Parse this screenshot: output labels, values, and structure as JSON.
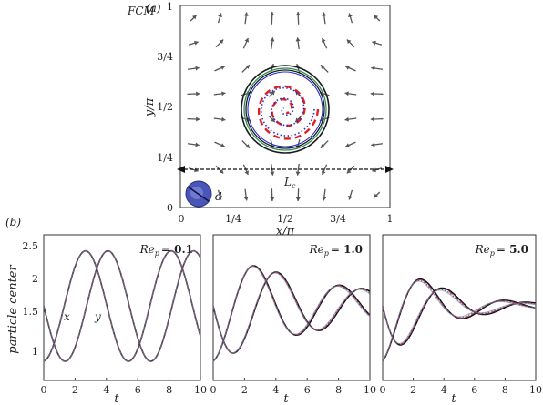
{
  "top_panel": {
    "tag": "(a)",
    "method_label": "FCM",
    "x_axis_label": "x/π",
    "y_axis_label": "y/π",
    "x_ticks": [
      "0",
      "1/4",
      "1/2",
      "3/4",
      "1"
    ],
    "y_ticks": [
      "0",
      "1/4",
      "1/2",
      "3/4",
      "1"
    ],
    "length_label": "L",
    "length_subscript": "c",
    "diameter_label": "d",
    "colors": {
      "arrows": "#555555",
      "trajectory_outer": "#1a1a1a",
      "trajectory_mid": "#2e8b57",
      "spiral_dashed": "#e02020",
      "spiral_dotted": "#2a2ad0",
      "particle": "#4a55b8"
    }
  },
  "bottom_panel": {
    "tag": "(b)",
    "y_axis_label": "particle center",
    "x_axis_label": "t",
    "y_ticks": [
      "1",
      "1.5",
      "2",
      "2.5"
    ],
    "x_ticks": [
      "0",
      "2",
      "4",
      "6",
      "8",
      "10"
    ],
    "curve_labels": {
      "x": "x",
      "y": "y"
    }
  },
  "chart_data": [
    {
      "type": "line",
      "title_prefix": "Re",
      "title_subscript": "p",
      "title_value": "= 0.1",
      "xlim": [
        0,
        10
      ],
      "ylim": [
        0.6,
        2.5
      ],
      "damping": 0.0,
      "series": [
        {
          "name": "x",
          "x": [
            0,
            1,
            2,
            3,
            4,
            5,
            6,
            7,
            8,
            9,
            10
          ],
          "values": [
            0.89,
            1.25,
            2.0,
            2.32,
            1.95,
            1.25,
            0.86,
            1.22,
            1.95,
            2.32,
            2.25
          ]
        },
        {
          "name": "y",
          "x": [
            0,
            1,
            2,
            3,
            4,
            5,
            6,
            7,
            8,
            9,
            10
          ],
          "values": [
            1.57,
            0.95,
            0.88,
            1.45,
            2.1,
            2.3,
            1.85,
            1.12,
            0.85,
            1.35,
            2.05
          ]
        }
      ]
    },
    {
      "type": "line",
      "title_prefix": "Re",
      "title_subscript": "p",
      "title_value": "= 1.0",
      "xlim": [
        0,
        10
      ],
      "ylim": [
        0.6,
        2.5
      ],
      "damping": 0.12,
      "series": [
        {
          "name": "x",
          "x": [
            0,
            1,
            2,
            3,
            4,
            5,
            6,
            7,
            8,
            9,
            10
          ],
          "values": [
            0.89,
            1.35,
            2.0,
            2.22,
            1.85,
            1.35,
            1.08,
            1.3,
            1.68,
            1.82,
            1.6
          ]
        },
        {
          "name": "y",
          "x": [
            0,
            1,
            2,
            3,
            4,
            5,
            6,
            7,
            8,
            9,
            10
          ],
          "values": [
            1.57,
            1.02,
            0.9,
            1.45,
            1.95,
            2.05,
            1.7,
            1.28,
            1.22,
            1.6,
            1.82
          ]
        }
      ]
    },
    {
      "type": "line",
      "title_prefix": "Re",
      "title_subscript": "p",
      "title_value": "= 5.0",
      "xlim": [
        0,
        10
      ],
      "ylim": [
        0.6,
        2.5
      ],
      "damping": 0.28,
      "series": [
        {
          "name": "x",
          "x": [
            0,
            1,
            2,
            3,
            4,
            5,
            6,
            7,
            8,
            9,
            10
          ],
          "values": [
            0.89,
            1.55,
            2.05,
            1.9,
            1.45,
            1.22,
            1.4,
            1.68,
            1.7,
            1.55,
            1.48
          ]
        },
        {
          "name": "y",
          "x": [
            0,
            1,
            2,
            3,
            4,
            5,
            6,
            7,
            8,
            9,
            10
          ],
          "values": [
            1.57,
            1.05,
            1.15,
            1.7,
            1.95,
            1.7,
            1.38,
            1.42,
            1.6,
            1.68,
            1.55
          ]
        }
      ]
    }
  ]
}
